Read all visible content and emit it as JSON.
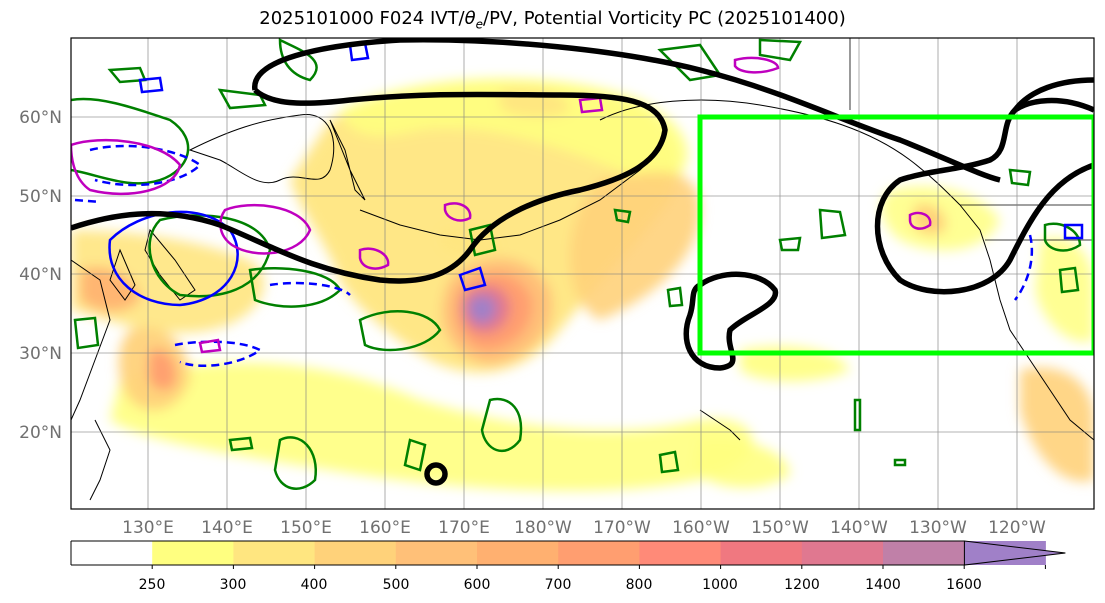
{
  "figure": {
    "title_main": "2025101000 F024 IVT/",
    "title_theta": "θ",
    "title_sub": "e",
    "title_rest": "/PV, Potential Vorticity PC (2025101400)"
  },
  "map": {
    "lat_labels": [
      "60°N",
      "50°N",
      "40°N",
      "30°N",
      "20°N"
    ],
    "lon_labels": [
      "130°E",
      "140°E",
      "150°E",
      "160°E",
      "170°E",
      "180°W",
      "170°W",
      "160°W",
      "150°W",
      "140°W",
      "130°W",
      "120°W"
    ],
    "colors": {
      "box": "#00ff00",
      "pv_contour": "#000000",
      "pos_anom": "#008000",
      "neg_anom": "#0000ff",
      "theta_contour": "#bf00bf"
    }
  },
  "colorbar": {
    "ticks": [
      "250",
      "300",
      "400",
      "500",
      "600",
      "700",
      "800",
      "1000",
      "1200",
      "1400",
      "1600"
    ],
    "colors": [
      "#ffffff",
      "#ffff80",
      "#ffe680",
      "#ffd27a",
      "#ffc078",
      "#ffb070",
      "#ff9e70",
      "#ff8a78",
      "#f07880",
      "#e07890",
      "#c080a8",
      "#a080c8"
    ]
  }
}
